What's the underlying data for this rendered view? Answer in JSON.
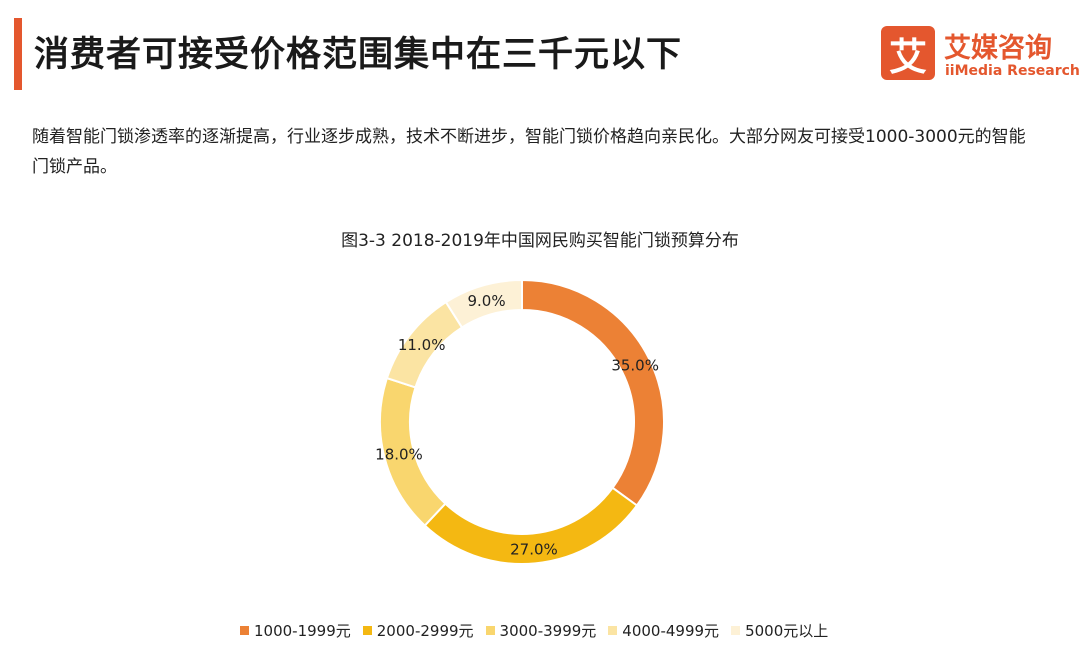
{
  "header": {
    "title": "消费者可接受价格范围集中在三千元以下",
    "accent_color": "#e4572e"
  },
  "logo": {
    "mark": "艾",
    "name_cn": "艾媒咨询",
    "name_en": "iiMedia Research"
  },
  "description": "随着智能门锁渗透率的逐渐提高，行业逐步成熟，技术不断进步，智能门锁价格趋向亲民化。大部分网友可接受1000-3000元的智能门锁产品。",
  "chart_data": {
    "type": "pie",
    "variant": "donut",
    "title": "图3-3 2018-2019年中国网民购买智能门锁预算分布",
    "categories": [
      "1000-1999元",
      "2000-2999元",
      "3000-3999元",
      "4000-4999元",
      "5000元以上"
    ],
    "values": [
      35.0,
      27.0,
      18.0,
      11.0,
      9.0
    ],
    "labels": [
      "35.0%",
      "27.0%",
      "18.0%",
      "11.0%",
      "9.0%"
    ],
    "colors": [
      "#ec8135",
      "#f4b812",
      "#f9d66e",
      "#fbe4a3",
      "#fdf1d6"
    ],
    "legend_position": "bottom"
  }
}
